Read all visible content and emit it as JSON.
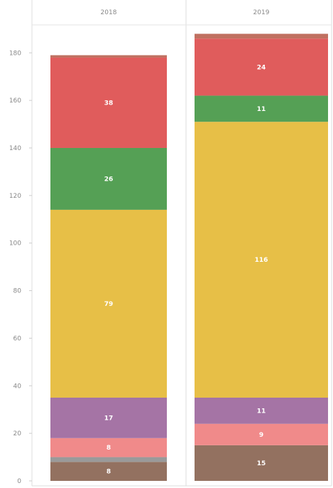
{
  "chart_data": {
    "type": "bar",
    "stacked": true,
    "categories": [
      "2018",
      "2019"
    ],
    "yticks": [
      "0",
      "20",
      "40",
      "60",
      "80",
      "100",
      "120",
      "140",
      "160",
      "180"
    ],
    "ylim": [
      0,
      189
    ],
    "grid": false,
    "series": [
      {
        "color": "#937160",
        "values": [
          8,
          15
        ],
        "labels": [
          "8",
          "15"
        ]
      },
      {
        "color": "#9a9a9a",
        "values": [
          2,
          0
        ],
        "labels": [
          "",
          ""
        ]
      },
      {
        "color": "#f08a8a",
        "values": [
          8,
          9
        ],
        "labels": [
          "8",
          "9"
        ]
      },
      {
        "color": "#a574a5",
        "values": [
          17,
          11
        ],
        "labels": [
          "17",
          "11"
        ]
      },
      {
        "color": "#e7bf47",
        "values": [
          79,
          116
        ],
        "labels": [
          "79",
          "116"
        ]
      },
      {
        "color": "#55a055",
        "values": [
          26,
          11
        ],
        "labels": [
          "26",
          "11"
        ]
      },
      {
        "color": "#e05c5c",
        "values": [
          38,
          24
        ],
        "labels": [
          "38",
          "24"
        ]
      },
      {
        "color": "#c07060",
        "values": [
          1,
          2
        ],
        "labels": [
          "",
          ""
        ]
      }
    ]
  }
}
